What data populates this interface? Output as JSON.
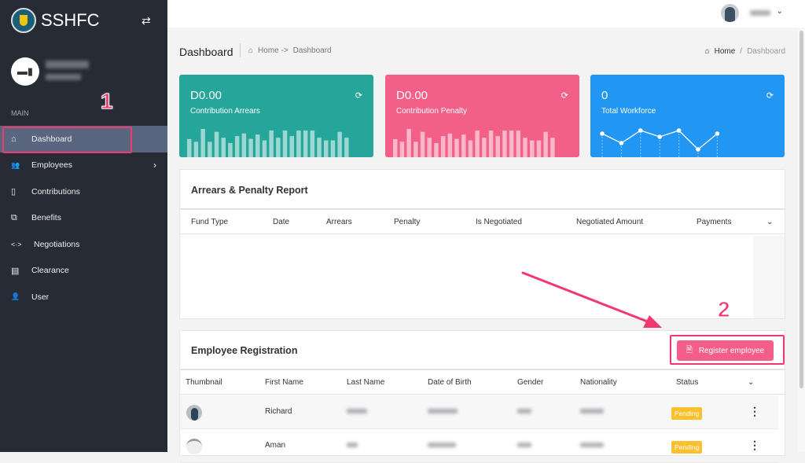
{
  "sidebar": {
    "brand": "SSHFC",
    "section": "MAIN",
    "items": [
      {
        "label": "Dashboard",
        "icon": "home-icon",
        "glyph": "⌂"
      },
      {
        "label": "Employees",
        "icon": "users-icon",
        "glyph": "👥"
      },
      {
        "label": "Contributions",
        "icon": "clipboard-icon",
        "glyph": "▯"
      },
      {
        "label": "Benefits",
        "icon": "copy-icon",
        "glyph": "⧉"
      },
      {
        "label": "Negotiations",
        "icon": "code-arrows-icon",
        "glyph": "<·>"
      },
      {
        "label": "Clearance",
        "icon": "ledger-icon",
        "glyph": "▤"
      },
      {
        "label": "User",
        "icon": "user-icon",
        "glyph": "👤"
      }
    ]
  },
  "header": {
    "title": "Dashboard",
    "crumb_home": "Home ->",
    "crumb_current": "Dashboard",
    "crumb2_home": "Home",
    "crumb2_sep": "/",
    "crumb2_current": "Dashboard"
  },
  "cards": [
    {
      "value": "D0.00",
      "label": "Contribution Arrears",
      "color": "#26a69a",
      "spark": [
        68,
        58,
        106,
        58,
        95,
        73,
        53,
        79,
        89,
        69,
        85,
        63,
        100,
        73,
        100,
        79,
        100,
        100,
        100,
        73,
        63,
        63,
        95,
        73
      ]
    },
    {
      "value": "D0.00",
      "label": "Contribution Penalty",
      "color": "#f25f87",
      "spark": [
        68,
        58,
        106,
        58,
        95,
        73,
        53,
        79,
        89,
        69,
        85,
        63,
        100,
        73,
        100,
        79,
        100,
        100,
        100,
        73,
        63,
        63,
        95,
        73
      ]
    },
    {
      "value": "0",
      "label": "Total Workforce",
      "color": "#2196f3",
      "line": [
        6,
        3,
        7,
        5,
        7,
        1,
        6
      ]
    }
  ],
  "arrears": {
    "title": "Arrears & Penalty Report",
    "columns": [
      "Fund Type",
      "Date",
      "Arrears",
      "Penalty",
      "Is Negotiated",
      "Negotiated Amount",
      "Payments"
    ]
  },
  "employees": {
    "title": "Employee Registration",
    "register_label": "Register employee",
    "columns": [
      "Thumbnail",
      "First Name",
      "Last Name",
      "Date of Birth",
      "Gender",
      "Nationality",
      "Status"
    ],
    "rows": [
      {
        "first_name": "Richard",
        "status": "Pending"
      },
      {
        "first_name": "Aman",
        "status": "Pending"
      }
    ]
  },
  "annotations": {
    "one": "1",
    "two": "2",
    "color": "#f2386e"
  }
}
